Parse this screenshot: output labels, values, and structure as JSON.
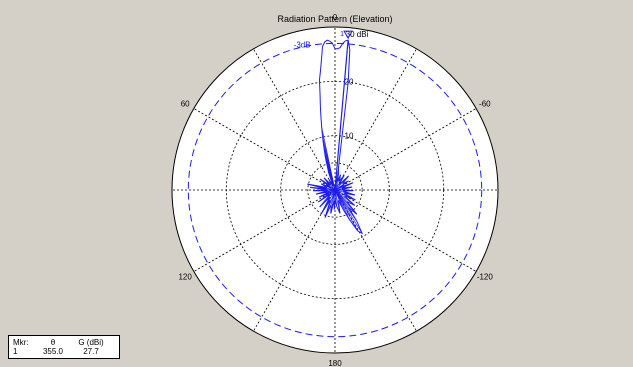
{
  "chart_data": {
    "type": "polar-line",
    "title": "Radiation Pattern (Elevation)",
    "radial_unit_label": "30 dBi",
    "radial_ticks": [
      {
        "value": 10,
        "label": "10"
      },
      {
        "value": 20,
        "label": "20"
      }
    ],
    "radial_max": 30,
    "minus3db_level": 27,
    "minus3db_label": "-3dB",
    "angle_labels": [
      {
        "angle": 0,
        "label": "0"
      },
      {
        "angle": 60,
        "label": "60"
      },
      {
        "angle": 120,
        "label": "120"
      },
      {
        "angle": 180,
        "label": "180"
      },
      {
        "angle": 240,
        "label": "-120"
      },
      {
        "angle": 300,
        "label": "-60"
      }
    ],
    "series": [
      {
        "color": "#1c1cf0",
        "points": [
          [
            0,
            26.0
          ],
          [
            1,
            27.0
          ],
          [
            2,
            27.4
          ],
          [
            3,
            27.6
          ],
          [
            4,
            27.3
          ],
          [
            5,
            26.5
          ],
          [
            6,
            24.0
          ],
          [
            7,
            22.0
          ],
          [
            8,
            20.5
          ],
          [
            9,
            17.5
          ],
          [
            10,
            15.5
          ],
          [
            11,
            13.5
          ],
          [
            12,
            11.8
          ],
          [
            13,
            10.2
          ],
          [
            14,
            8.8
          ],
          [
            15,
            7.6
          ],
          [
            16,
            6.6
          ],
          [
            17,
            5.6
          ],
          [
            18,
            4.6
          ],
          [
            20,
            3.5
          ],
          [
            22,
            1.8
          ],
          [
            25,
            1.0
          ],
          [
            30,
            2.2
          ],
          [
            36,
            1.2
          ],
          [
            42,
            3.0
          ],
          [
            48,
            1.3
          ],
          [
            54,
            3.4
          ],
          [
            60,
            1.0
          ],
          [
            66,
            2.8
          ],
          [
            72,
            1.5
          ],
          [
            78,
            5.2
          ],
          [
            81,
            1.6
          ],
          [
            84,
            4.6
          ],
          [
            88,
            1.5
          ],
          [
            92,
            4.0
          ],
          [
            96,
            1.3
          ],
          [
            102,
            3.6
          ],
          [
            108,
            1.0
          ],
          [
            114,
            3.2
          ],
          [
            120,
            1.2
          ],
          [
            126,
            3.8
          ],
          [
            132,
            1.0
          ],
          [
            138,
            4.2
          ],
          [
            144,
            1.6
          ],
          [
            150,
            5.0
          ],
          [
            155,
            2.0
          ],
          [
            160,
            5.4
          ],
          [
            165,
            2.8
          ],
          [
            170,
            4.4
          ],
          [
            175,
            2.0
          ],
          [
            178,
            3.6
          ],
          [
            182,
            1.8
          ],
          [
            186,
            3.0
          ],
          [
            192,
            4.4
          ],
          [
            198,
            2.0
          ],
          [
            203,
            4.0
          ],
          [
            206,
            6.0
          ],
          [
            209,
            8.6
          ],
          [
            212,
            9.4
          ],
          [
            215,
            7.0
          ],
          [
            218,
            4.0
          ],
          [
            222,
            6.0
          ],
          [
            226,
            3.0
          ],
          [
            232,
            4.6
          ],
          [
            238,
            2.0
          ],
          [
            244,
            4.2
          ],
          [
            250,
            1.8
          ],
          [
            256,
            3.8
          ],
          [
            262,
            1.5
          ],
          [
            268,
            3.4
          ],
          [
            274,
            1.2
          ],
          [
            280,
            3.2
          ],
          [
            286,
            1.3
          ],
          [
            292,
            3.6
          ],
          [
            298,
            1.0
          ],
          [
            304,
            3.0
          ],
          [
            310,
            1.8
          ],
          [
            316,
            3.6
          ],
          [
            322,
            1.2
          ],
          [
            328,
            3.2
          ],
          [
            334,
            1.8
          ],
          [
            340,
            3.0
          ],
          [
            344,
            1.6
          ],
          [
            348,
            3.2
          ],
          [
            351,
            4.0
          ],
          [
            353,
            20.0
          ],
          [
            354,
            26.0
          ],
          [
            355,
            27.7
          ],
          [
            356,
            27.5
          ],
          [
            357,
            27.0
          ],
          [
            358,
            26.2
          ],
          [
            359,
            26.0
          ],
          [
            360,
            26.0
          ]
        ]
      }
    ],
    "marker": {
      "angle": 355.0,
      "gain": 27.7,
      "label": "1"
    }
  },
  "marker_table": {
    "header_mkr": "Mkr:",
    "header_theta": "θ",
    "header_gain": "G (dBi)",
    "row_num": "1",
    "row_theta": "355.0",
    "row_gain": "27.7"
  }
}
